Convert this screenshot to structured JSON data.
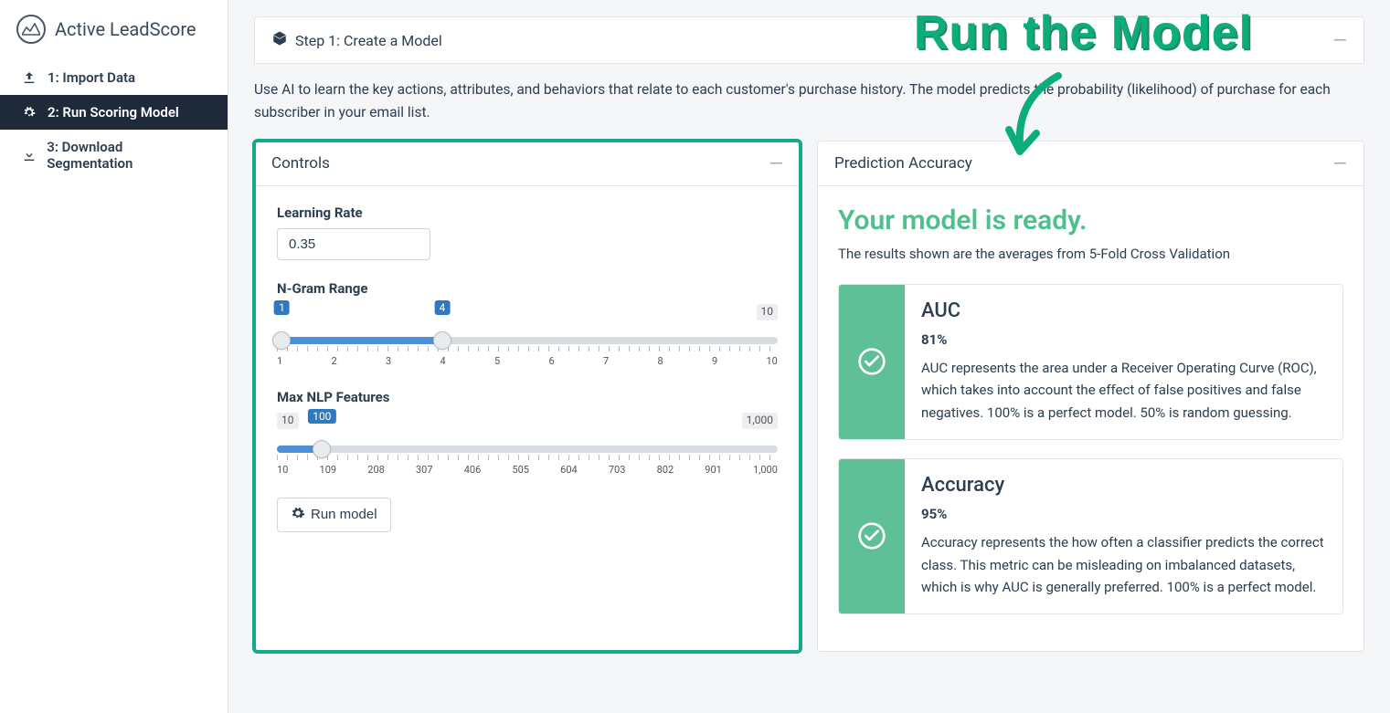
{
  "brand": "Active LeadScore",
  "nav": [
    {
      "label": "1: Import Data",
      "active": false
    },
    {
      "label": "2: Run Scoring Model",
      "active": true
    },
    {
      "label": "3: Download Segmentation",
      "active": false
    }
  ],
  "step_header": "Step 1: Create a Model",
  "description": "Use AI to learn the key actions, attributes, and behaviors that relate to each customer's purchase history. The model predicts the probability (likelihood) of purchase for each subscriber in your email list.",
  "annotation": "Run the Model",
  "controls": {
    "title": "Controls",
    "learning_rate": {
      "label": "Learning Rate",
      "value": "0.35"
    },
    "ngram": {
      "label": "N-Gram Range",
      "min": "1",
      "max": "10",
      "low": "1",
      "high": "4",
      "low_pct": 1,
      "high_pct": 33,
      "ticks": [
        "1",
        "2",
        "3",
        "4",
        "5",
        "6",
        "7",
        "8",
        "9",
        "10"
      ]
    },
    "nlp": {
      "label": "Max NLP Features",
      "min": "10",
      "max": "1,000",
      "value": "100",
      "value_pct": 9,
      "ticks": [
        "10",
        "109",
        "208",
        "307",
        "406",
        "505",
        "604",
        "703",
        "802",
        "901",
        "1,000"
      ]
    },
    "run_button": "Run model"
  },
  "prediction": {
    "title": "Prediction Accuracy",
    "ready_title": "Your model is ready.",
    "ready_sub": "The results shown are the averages from 5-Fold Cross Validation",
    "metrics": [
      {
        "name": "AUC",
        "value": "81%",
        "desc": "AUC represents the area under a Receiver Operating Curve (ROC), which takes into account the effect of false positives and false negatives. 100% is a perfect model. 50% is random guessing."
      },
      {
        "name": "Accuracy",
        "value": "95%",
        "desc": "Accuracy represents the how often a classifier predicts the correct class. This metric can be misleading on imbalanced datasets, which is why AUC is generally preferred. 100% is a perfect model."
      }
    ]
  },
  "colors": {
    "accent_green": "#13a98a",
    "metric_green": "#5fbf97",
    "ready_green": "#4fc08d",
    "slider_blue": "#4d90d6",
    "nav_active_bg": "#1e2a3a"
  }
}
